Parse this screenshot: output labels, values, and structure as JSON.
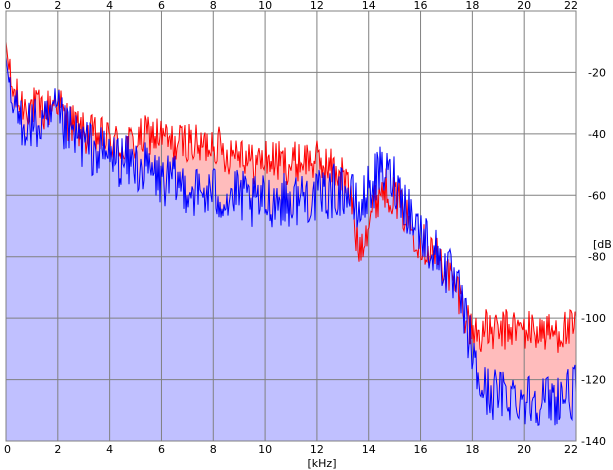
{
  "chart_data": {
    "type": "area",
    "title": "",
    "xlabel": "[kHz]",
    "ylabel": "[dB]",
    "xlim": [
      0,
      22
    ],
    "ylim": [
      -140,
      0
    ],
    "grid": true,
    "x_ticks": [
      "0",
      "2",
      "4",
      "6",
      "8",
      "10",
      "12",
      "14",
      "16",
      "18",
      "20",
      "22"
    ],
    "y_ticks": [
      "-20",
      "-40",
      "-60",
      "-80",
      "-100",
      "-120",
      "-140"
    ],
    "colors": {
      "red_line": "#ff0000",
      "red_fill": "#ffbcbc",
      "blue_line": "#0000ff",
      "blue_fill": "#c0c0ff",
      "grid": "#808080"
    },
    "series": [
      {
        "x": [
          0,
          0.1,
          0.2,
          0.5,
          1,
          1.5,
          2,
          2.2,
          2.5,
          3,
          3.5,
          4,
          4.5,
          5,
          5.5,
          6,
          6.5,
          7,
          7.5,
          8,
          8.5,
          9,
          9.5,
          10,
          10.5,
          11,
          11.5,
          12,
          12.5,
          13,
          13.3,
          13.6,
          14,
          14.5,
          15,
          15.5,
          16,
          16.5,
          17,
          17.5,
          17.9,
          18.2,
          18.5,
          19,
          19.5,
          20,
          20.5,
          21,
          21.5,
          22
        ],
        "values": [
          -10,
          -18,
          -25,
          -30,
          -31,
          -33,
          -28,
          -34,
          -36,
          -40,
          -41,
          -42,
          -44,
          -43,
          -40,
          -41,
          -44,
          -42,
          -45,
          -42,
          -47,
          -44,
          -50,
          -48,
          -49,
          -50,
          -48,
          -49,
          -51,
          -53,
          -60,
          -78,
          -68,
          -57,
          -60,
          -68,
          -75,
          -78,
          -85,
          -92,
          -103,
          -105,
          -104,
          -105,
          -103,
          -104,
          -104,
          -105,
          -104,
          -104
        ]
      },
      {
        "x": [
          0,
          0.1,
          0.2,
          0.5,
          1,
          1.5,
          2,
          2.2,
          2.5,
          3,
          3.5,
          4,
          4.5,
          5,
          5.5,
          6,
          6.5,
          7,
          7.5,
          8,
          8.5,
          9,
          9.5,
          10,
          10.5,
          11,
          11.5,
          12,
          12.5,
          13,
          13.3,
          13.6,
          14,
          14.5,
          15,
          15.5,
          16,
          16.5,
          17,
          17.5,
          17.9,
          18.2,
          18.5,
          19,
          19.5,
          20,
          20.5,
          21,
          21.5,
          22
        ],
        "values": [
          -15,
          -22,
          -30,
          -35,
          -37,
          -38,
          -33,
          -38,
          -40,
          -43,
          -46,
          -47,
          -49,
          -50,
          -52,
          -55,
          -56,
          -57,
          -60,
          -59,
          -61,
          -60,
          -63,
          -62,
          -61,
          -62,
          -60,
          -61,
          -59,
          -58,
          -60,
          -66,
          -58,
          -52,
          -55,
          -64,
          -72,
          -78,
          -84,
          -93,
          -107,
          -120,
          -124,
          -125,
          -125,
          -126,
          -126,
          -127,
          -125,
          -124
        ]
      }
    ]
  }
}
